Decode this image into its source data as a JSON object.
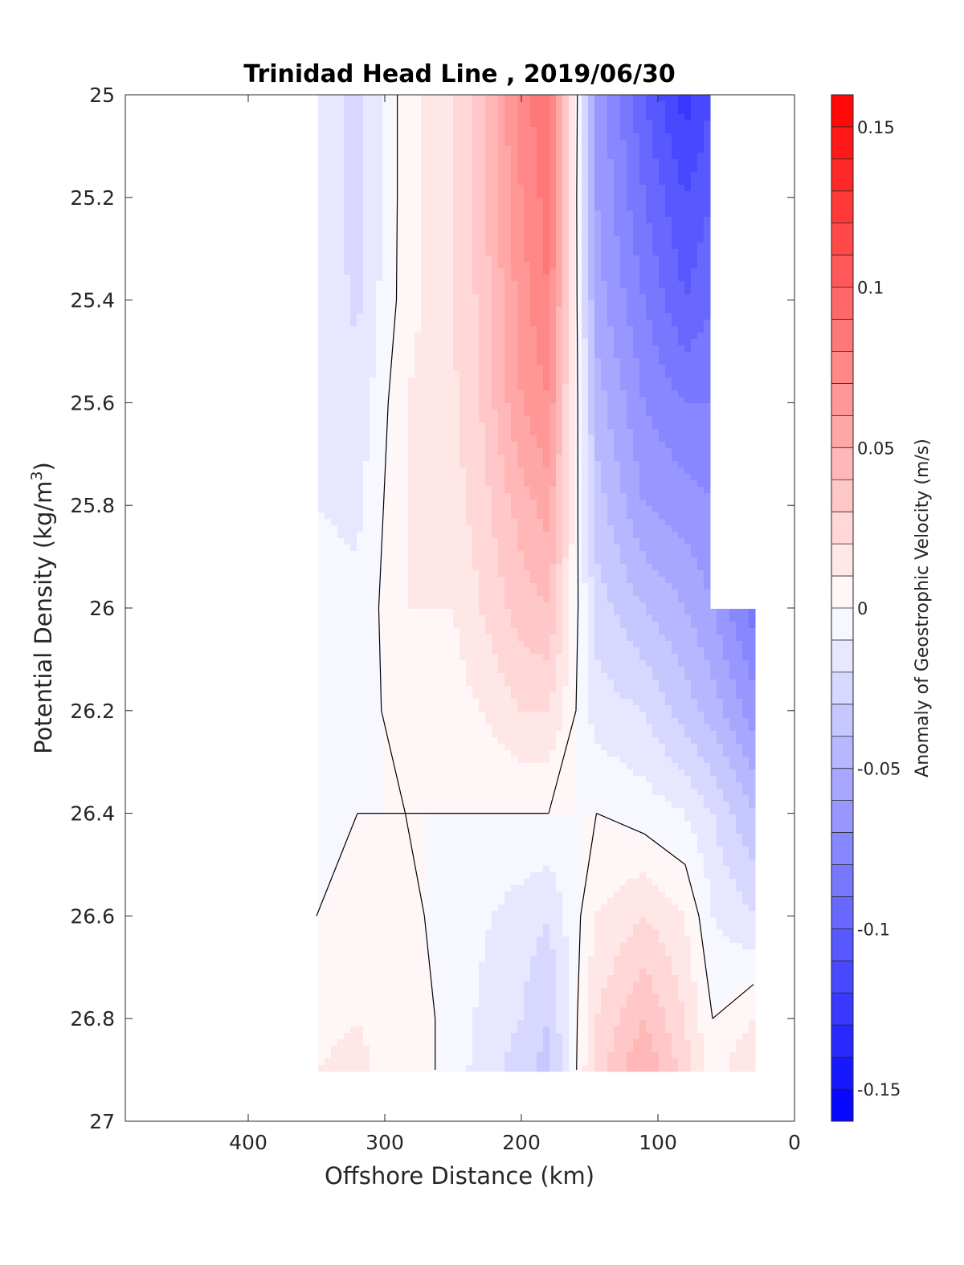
{
  "chart_data": {
    "type": "heatmap",
    "title": "Trinidad Head Line , 2019/06/30",
    "xlabel": "Offshore Distance (km)",
    "ylabel": "Potential Density (kg/m",
    "ylabel_sup": "3",
    "ylabel_close": ")",
    "xlim": [
      490,
      0
    ],
    "x_reversed": true,
    "ylim": [
      25,
      27
    ],
    "y_reversed": true,
    "x_ticks": [
      400,
      300,
      200,
      100,
      0
    ],
    "x_tick_labels": [
      "400",
      "300",
      "200",
      "100",
      "0"
    ],
    "y_ticks": [
      25,
      25.2,
      25.4,
      25.6,
      25.8,
      26,
      26.2,
      26.4,
      26.6,
      26.8,
      27
    ],
    "y_tick_labels": [
      "25",
      "25.2",
      "25.4",
      "25.6",
      "25.8",
      "26",
      "26.2",
      "26.4",
      "26.6",
      "26.8",
      "27"
    ],
    "grid": false,
    "colorbar": {
      "label": "Anomaly of Geostrophic Velocity (m/s)",
      "range": [
        -0.16,
        0.16
      ],
      "levels": 32,
      "ticks": [
        0.15,
        0.1,
        0.05,
        0,
        -0.05,
        -0.1,
        -0.15
      ],
      "tick_labels": [
        "0.15",
        "0.1",
        "0.05",
        "0",
        "-0.05",
        "-0.1",
        "-0.15"
      ],
      "colormap": "blue-white-red",
      "positive_color": "#ff0000",
      "negative_color": "#0000ff"
    },
    "x_stations": [
      350,
      320,
      285,
      250,
      230,
      200,
      180,
      145,
      110,
      80,
      60,
      30
    ],
    "y_levels": [
      25,
      25.2,
      25.4,
      25.6,
      25.8,
      26,
      26.2,
      26.4,
      26.6,
      26.8,
      26.9
    ],
    "values": [
      [
        -0.012,
        -0.025,
        0.005,
        0.018,
        0.035,
        0.075,
        0.09,
        -0.06,
        -0.1,
        -0.125,
        -0.11,
        null
      ],
      [
        -0.012,
        -0.025,
        0.005,
        0.018,
        0.035,
        0.07,
        0.085,
        -0.06,
        -0.09,
        -0.11,
        -0.1,
        null
      ],
      [
        -0.012,
        -0.022,
        0.005,
        0.02,
        0.032,
        0.065,
        0.08,
        -0.055,
        -0.08,
        -0.1,
        -0.09,
        null
      ],
      [
        -0.01,
        -0.018,
        0.01,
        0.018,
        0.03,
        0.06,
        0.07,
        -0.045,
        -0.07,
        -0.08,
        -0.08,
        null
      ],
      [
        -0.01,
        -0.012,
        0.01,
        0.015,
        0.025,
        0.045,
        0.055,
        -0.035,
        -0.06,
        -0.065,
        -0.07,
        null
      ],
      [
        -0.006,
        -0.008,
        0.01,
        0.01,
        0.02,
        0.035,
        0.04,
        -0.025,
        -0.04,
        -0.05,
        -0.06,
        -0.085
      ],
      [
        -0.004,
        -0.005,
        0.005,
        0.005,
        0.01,
        0.02,
        0.02,
        -0.015,
        -0.02,
        -0.035,
        -0.045,
        -0.065
      ],
      [
        -0.002,
        0.0,
        0.0,
        0.0,
        0.0,
        0.0,
        0.0,
        0.0,
        -0.005,
        -0.01,
        -0.02,
        -0.04
      ],
      [
        0.0,
        0.002,
        0.002,
        -0.003,
        -0.008,
        -0.015,
        -0.02,
        0.01,
        0.02,
        0.01,
        -0.01,
        -0.02
      ],
      [
        0.008,
        0.01,
        0.005,
        -0.003,
        -0.012,
        -0.02,
        -0.03,
        0.02,
        0.04,
        0.02,
        0.0,
        0.01
      ],
      [
        0.01,
        0.012,
        0.005,
        -0.003,
        -0.015,
        -0.025,
        -0.035,
        0.025,
        0.05,
        0.025,
        0.005,
        0.02
      ]
    ]
  }
}
